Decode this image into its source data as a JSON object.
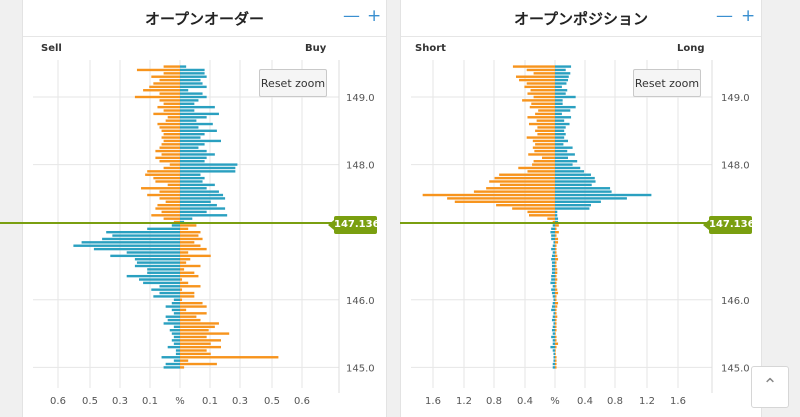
{
  "current_price": "147.136",
  "scroll_top_icon": "chevron-up-icon",
  "colors": {
    "orange": "#f7941d",
    "blue": "#2aa0c0",
    "price_line": "#7a9f10",
    "grid": "#e6e6e6"
  },
  "panels": [
    {
      "title": "オープンオーダー",
      "left_label": "Sell",
      "right_label": "Buy",
      "reset_label": "Reset zoom",
      "minus_label": "—",
      "plus_label": "+"
    },
    {
      "title": "オープンポジション",
      "left_label": "Short",
      "right_label": "Long",
      "reset_label": "Reset zoom",
      "minus_label": "—",
      "plus_label": "+"
    }
  ],
  "chart_data": [
    {
      "type": "bar",
      "orientation": "horizontal",
      "title": "オープンオーダー",
      "left_series": "Sell",
      "right_series": "Buy",
      "x_ticks": [
        "0.6",
        "0.5",
        "0.3",
        "0.1",
        "%",
        "0.1",
        "0.3",
        "0.5",
        "0.6"
      ],
      "y_ticks": [
        "149.0",
        "148.0",
        "146.0",
        "145.0"
      ],
      "y_range": [
        144.7,
        149.5
      ],
      "current_price": 147.136,
      "price_step": 0.05,
      "sell": [
        0.08,
        0.21,
        0.08,
        0.14,
        0.1,
        0.13,
        0.15,
        0.18,
        0.1,
        0.22,
        0.1,
        0.08,
        0.11,
        0.08,
        0.13,
        0.06,
        0.07,
        0.11,
        0.1,
        0.09,
        0.08,
        0.09,
        0.08,
        0.09,
        0.1,
        0.12,
        0.09,
        0.12,
        0.1,
        0.05,
        0.08,
        0.16,
        0.17,
        0.13,
        0.12,
        0.06,
        0.19,
        0.1,
        0.16,
        0.1,
        0.07,
        0.11,
        0.12,
        0.09,
        0.14,
        0.08,
        0.03,
        0.04,
        0.16,
        0.36,
        0.33,
        0.38,
        0.48,
        0.52,
        0.42,
        0.26,
        0.34,
        0.22,
        0.21,
        0.22,
        0.16,
        0.16,
        0.26,
        0.2,
        0.18,
        0.1,
        0.14,
        0.1,
        0.13,
        0.03,
        0.04,
        0.07,
        0.04,
        0.03,
        0.07,
        0.06,
        0.08,
        0.03,
        0.05,
        0.04,
        0.03,
        0.04,
        0.03,
        0.06,
        0.02,
        0.02,
        0.09,
        0.03,
        0.07,
        0.08
      ],
      "buy": [
        0.03,
        0.12,
        0.12,
        0.13,
        0.1,
        0.11,
        0.13,
        0.04,
        0.11,
        0.13,
        0.09,
        0.07,
        0.17,
        0.07,
        0.19,
        0.13,
        0.08,
        0.16,
        0.09,
        0.18,
        0.12,
        0.1,
        0.2,
        0.12,
        0.09,
        0.13,
        0.17,
        0.13,
        0.12,
        0.28,
        0.27,
        0.27,
        0.1,
        0.12,
        0.11,
        0.17,
        0.13,
        0.19,
        0.21,
        0.22,
        0.15,
        0.18,
        0.22,
        0.13,
        0.23,
        0.06,
        0.02,
        0.08,
        0.04,
        0.1,
        0.09,
        0.11,
        0.07,
        0.1,
        0.13,
        0.04,
        0.15,
        0.05,
        0.03,
        0.1,
        0.02,
        0.07,
        0.09,
        0.01,
        0.04,
        0.1,
        0.01,
        0.07,
        0.07,
        0.01,
        0.11,
        0.13,
        0.03,
        0.13,
        0.08,
        0.1,
        0.19,
        0.17,
        0.14,
        0.24,
        0.13,
        0.2,
        0.15,
        0.2,
        0.13,
        0.15,
        0.48,
        0.04,
        0.18,
        0.02
      ]
    },
    {
      "type": "bar",
      "orientation": "horizontal",
      "title": "オープンポジション",
      "left_series": "Short",
      "right_series": "Long",
      "x_ticks": [
        "1.6",
        "1.2",
        "0.8",
        "0.4",
        "%",
        "0.4",
        "0.8",
        "1.2",
        "1.6"
      ],
      "y_ticks": [
        "149.0",
        "148.0",
        "146.0",
        "145.0"
      ],
      "y_range": [
        144.7,
        149.5
      ],
      "current_price": 147.136,
      "price_step": 0.05,
      "short": [
        0.55,
        0.37,
        0.28,
        0.51,
        0.47,
        0.37,
        0.4,
        0.32,
        0.36,
        0.28,
        0.43,
        0.31,
        0.33,
        0.22,
        0.26,
        0.36,
        0.24,
        0.34,
        0.23,
        0.26,
        0.23,
        0.37,
        0.29,
        0.26,
        0.29,
        0.27,
        0.35,
        0.17,
        0.28,
        0.3,
        0.48,
        0.36,
        0.73,
        0.79,
        0.86,
        0.72,
        0.9,
        1.06,
        1.73,
        1.41,
        1.31,
        0.77,
        0.56,
        0.36,
        0.34,
        0.1,
        0.03,
        0.03,
        0.05,
        0.06,
        0.05,
        0.05,
        0.02,
        0.03,
        0.05,
        0.03,
        0.04,
        0.05,
        0.04,
        0.04,
        0.04,
        0.04,
        0.05,
        0.05,
        0.06,
        0.03,
        0.05,
        0.04,
        0.03,
        0.02,
        0.03,
        0.04,
        0.05,
        0.02,
        0.03,
        0.04,
        0.02,
        0.03,
        0.04,
        0.03,
        0.05,
        0.03,
        0.03,
        0.06,
        0.03,
        0.02,
        0.02,
        0.02,
        0.03,
        0.03
      ],
      "long": [
        0.21,
        0.14,
        0.2,
        0.18,
        0.17,
        0.15,
        0.09,
        0.16,
        0.14,
        0.27,
        0.1,
        0.1,
        0.27,
        0.2,
        0.09,
        0.21,
        0.12,
        0.19,
        0.14,
        0.12,
        0.14,
        0.12,
        0.17,
        0.11,
        0.23,
        0.16,
        0.26,
        0.17,
        0.29,
        0.23,
        0.33,
        0.38,
        0.47,
        0.52,
        0.53,
        0.48,
        0.72,
        0.74,
        1.26,
        0.94,
        0.6,
        0.47,
        0.45,
        0.03,
        0.03,
        0.04,
        0.04,
        0.05,
        0.02,
        0.05,
        0.02,
        0.04,
        0.04,
        0.02,
        0.02,
        0.02,
        0.03,
        0.04,
        0.02,
        0.02,
        0.03,
        0.03,
        0.02,
        0.03,
        0.02,
        0.02,
        0.03,
        0.04,
        0.02,
        0.02,
        0.04,
        0.03,
        0.02,
        0.02,
        0.03,
        0.02,
        0.02,
        0.02,
        0.02,
        0.01,
        0.02,
        0.02,
        0.04,
        0.02,
        0.01,
        0.01,
        0.02,
        0.02,
        0.02,
        0.02
      ]
    }
  ]
}
